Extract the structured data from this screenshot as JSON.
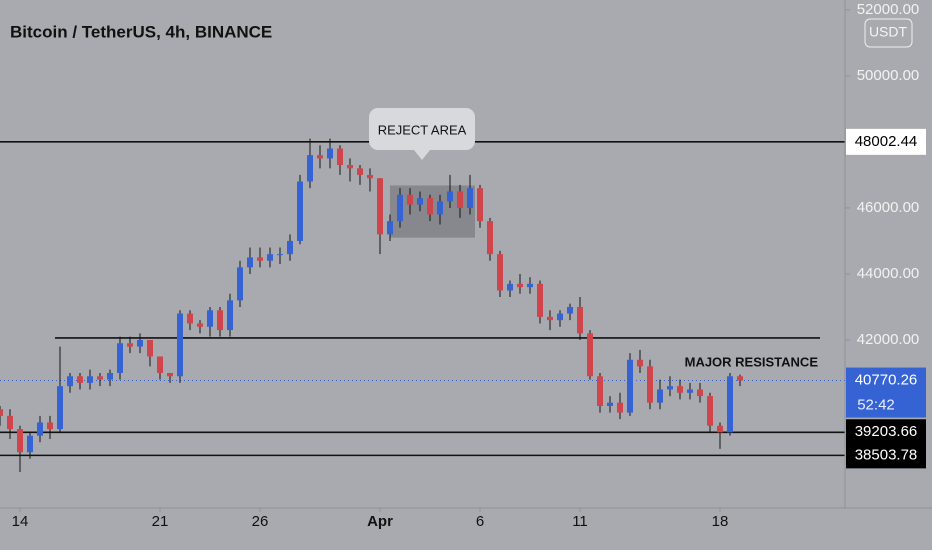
{
  "chart_data": {
    "type": "candlestick",
    "title": "Bitcoin / TetherUS, 4h, BINANCE",
    "currency": "USDT",
    "up_color": "#3563d4",
    "down_color": "#d0454c",
    "x": [
      13,
      13.5,
      14,
      14.5,
      15,
      15.5,
      16,
      16.5,
      17,
      17.5,
      18,
      18.5,
      19,
      19.5,
      20,
      20.5,
      21,
      21.5,
      22,
      22.5,
      23,
      23.5,
      24,
      24.5,
      25,
      25.5,
      26,
      26.5,
      27,
      27.5,
      28,
      28.5,
      29,
      29.5,
      30,
      30.5,
      31,
      31.5,
      32,
      32.5,
      33,
      33.5,
      34,
      34.5,
      35,
      35.5,
      36,
      36.5,
      37,
      37.5,
      38,
      38.5,
      39,
      39.5,
      40,
      40.5,
      41,
      41.5,
      42,
      42.5,
      43,
      43.5,
      44,
      44.5,
      45,
      45.5,
      46,
      46.5,
      47,
      47.5,
      48,
      48.5,
      49,
      49.5,
      50
    ],
    "open": [
      39900,
      39700,
      39300,
      38600,
      39100,
      39500,
      39300,
      40600,
      40900,
      40700,
      40900,
      40800,
      41000,
      41900,
      41800,
      42000,
      41500,
      41000,
      40900,
      42800,
      42500,
      42400,
      42900,
      42300,
      43200,
      44200,
      44500,
      44400,
      44600,
      44600,
      45000,
      46800,
      47600,
      47500,
      47800,
      47300,
      47200,
      47000,
      46900,
      45200,
      45600,
      46400,
      46100,
      46300,
      45800,
      46200,
      46500,
      46000,
      46600,
      45600,
      44600,
      43500,
      43700,
      43600,
      43700,
      42700,
      42600,
      42800,
      43000,
      42200,
      40900,
      40000,
      40100,
      39800,
      41400,
      41200,
      40100,
      40500,
      40600,
      40400,
      40500,
      40300,
      39400,
      39200,
      40900
    ],
    "high": [
      40000,
      39900,
      39400,
      39200,
      39700,
      39700,
      41800,
      41000,
      41000,
      41100,
      41000,
      41100,
      42100,
      42100,
      42200,
      42000,
      41500,
      41000,
      42900,
      42900,
      42600,
      43000,
      43000,
      43400,
      44400,
      44800,
      44800,
      44800,
      44800,
      45200,
      47000,
      48100,
      47900,
      48100,
      47900,
      47500,
      47300,
      47200,
      46900,
      45800,
      46600,
      46600,
      46500,
      46400,
      46400,
      47000,
      46700,
      47000,
      46700,
      45700,
      44700,
      43800,
      44000,
      43900,
      43800,
      42900,
      42900,
      43100,
      43300,
      42300,
      41000,
      40300,
      40400,
      41600,
      41700,
      41400,
      40800,
      40900,
      40800,
      40700,
      40700,
      40400,
      39500,
      41000,
      40950
    ],
    "low": [
      39400,
      39000,
      38000,
      38400,
      38900,
      39000,
      39200,
      40400,
      40500,
      40500,
      40600,
      40600,
      40800,
      41600,
      41600,
      41200,
      40800,
      40700,
      40700,
      42300,
      42200,
      42100,
      42100,
      42100,
      43000,
      44000,
      44200,
      44200,
      44300,
      44400,
      44900,
      46600,
      47200,
      47200,
      47000,
      46800,
      46700,
      46500,
      44600,
      45000,
      45400,
      45800,
      45900,
      45600,
      45500,
      46000,
      45700,
      45800,
      45400,
      44400,
      43300,
      43300,
      43400,
      43400,
      42500,
      42300,
      42400,
      42600,
      42000,
      40800,
      39800,
      39800,
      39600,
      39700,
      41000,
      39900,
      39900,
      40300,
      40200,
      40200,
      40100,
      39200,
      38700,
      39100,
      40600
    ],
    "close": [
      39700,
      39300,
      38600,
      39100,
      39500,
      39300,
      40600,
      40900,
      40700,
      40900,
      40800,
      41000,
      41900,
      41800,
      42000,
      41500,
      41000,
      40900,
      42800,
      42500,
      42400,
      42900,
      42300,
      43200,
      44200,
      44500,
      44400,
      44600,
      44600,
      45000,
      46800,
      47600,
      47500,
      47800,
      47300,
      47200,
      47000,
      46900,
      45200,
      45600,
      46400,
      46100,
      46300,
      45800,
      46200,
      46500,
      46000,
      46600,
      45600,
      44600,
      43500,
      43700,
      43600,
      43700,
      42700,
      42600,
      42800,
      43000,
      42200,
      40900,
      40000,
      40100,
      39800,
      41400,
      41200,
      40100,
      40500,
      40600,
      40400,
      40500,
      40300,
      39400,
      39200,
      40900,
      40770
    ],
    "xlim": [
      13,
      55.25
    ],
    "ylim": [
      37000,
      52300
    ],
    "xticks": [
      14,
      21,
      26,
      {
        "value": 32,
        "label": "Apr"
      },
      {
        "value": 37,
        "label": "6"
      },
      {
        "value": 42,
        "label": "11"
      },
      {
        "value": 49,
        "label": "18"
      }
    ],
    "yticks": [
      {
        "value": 42000,
        "label": "42000.00"
      },
      {
        "value": 44000,
        "label": "44000.00"
      },
      {
        "value": 46000,
        "label": "46000.00"
      },
      {
        "value": 50000,
        "label": "50000.00"
      },
      {
        "value": 52000,
        "label": "52000.00"
      }
    ],
    "levels": [
      48002.44,
      39203.66,
      38503.78
    ],
    "resistance": {
      "value": 42060,
      "from": 15.75,
      "to": 54
    },
    "last_price": 40770.26,
    "countdown": "52:42",
    "zone": {
      "from": 32.5,
      "to": 36.75,
      "top": 46680,
      "bottom": 45100
    },
    "annotations": [
      "REJECT AREA",
      "MAJOR RESISTANCE"
    ]
  }
}
